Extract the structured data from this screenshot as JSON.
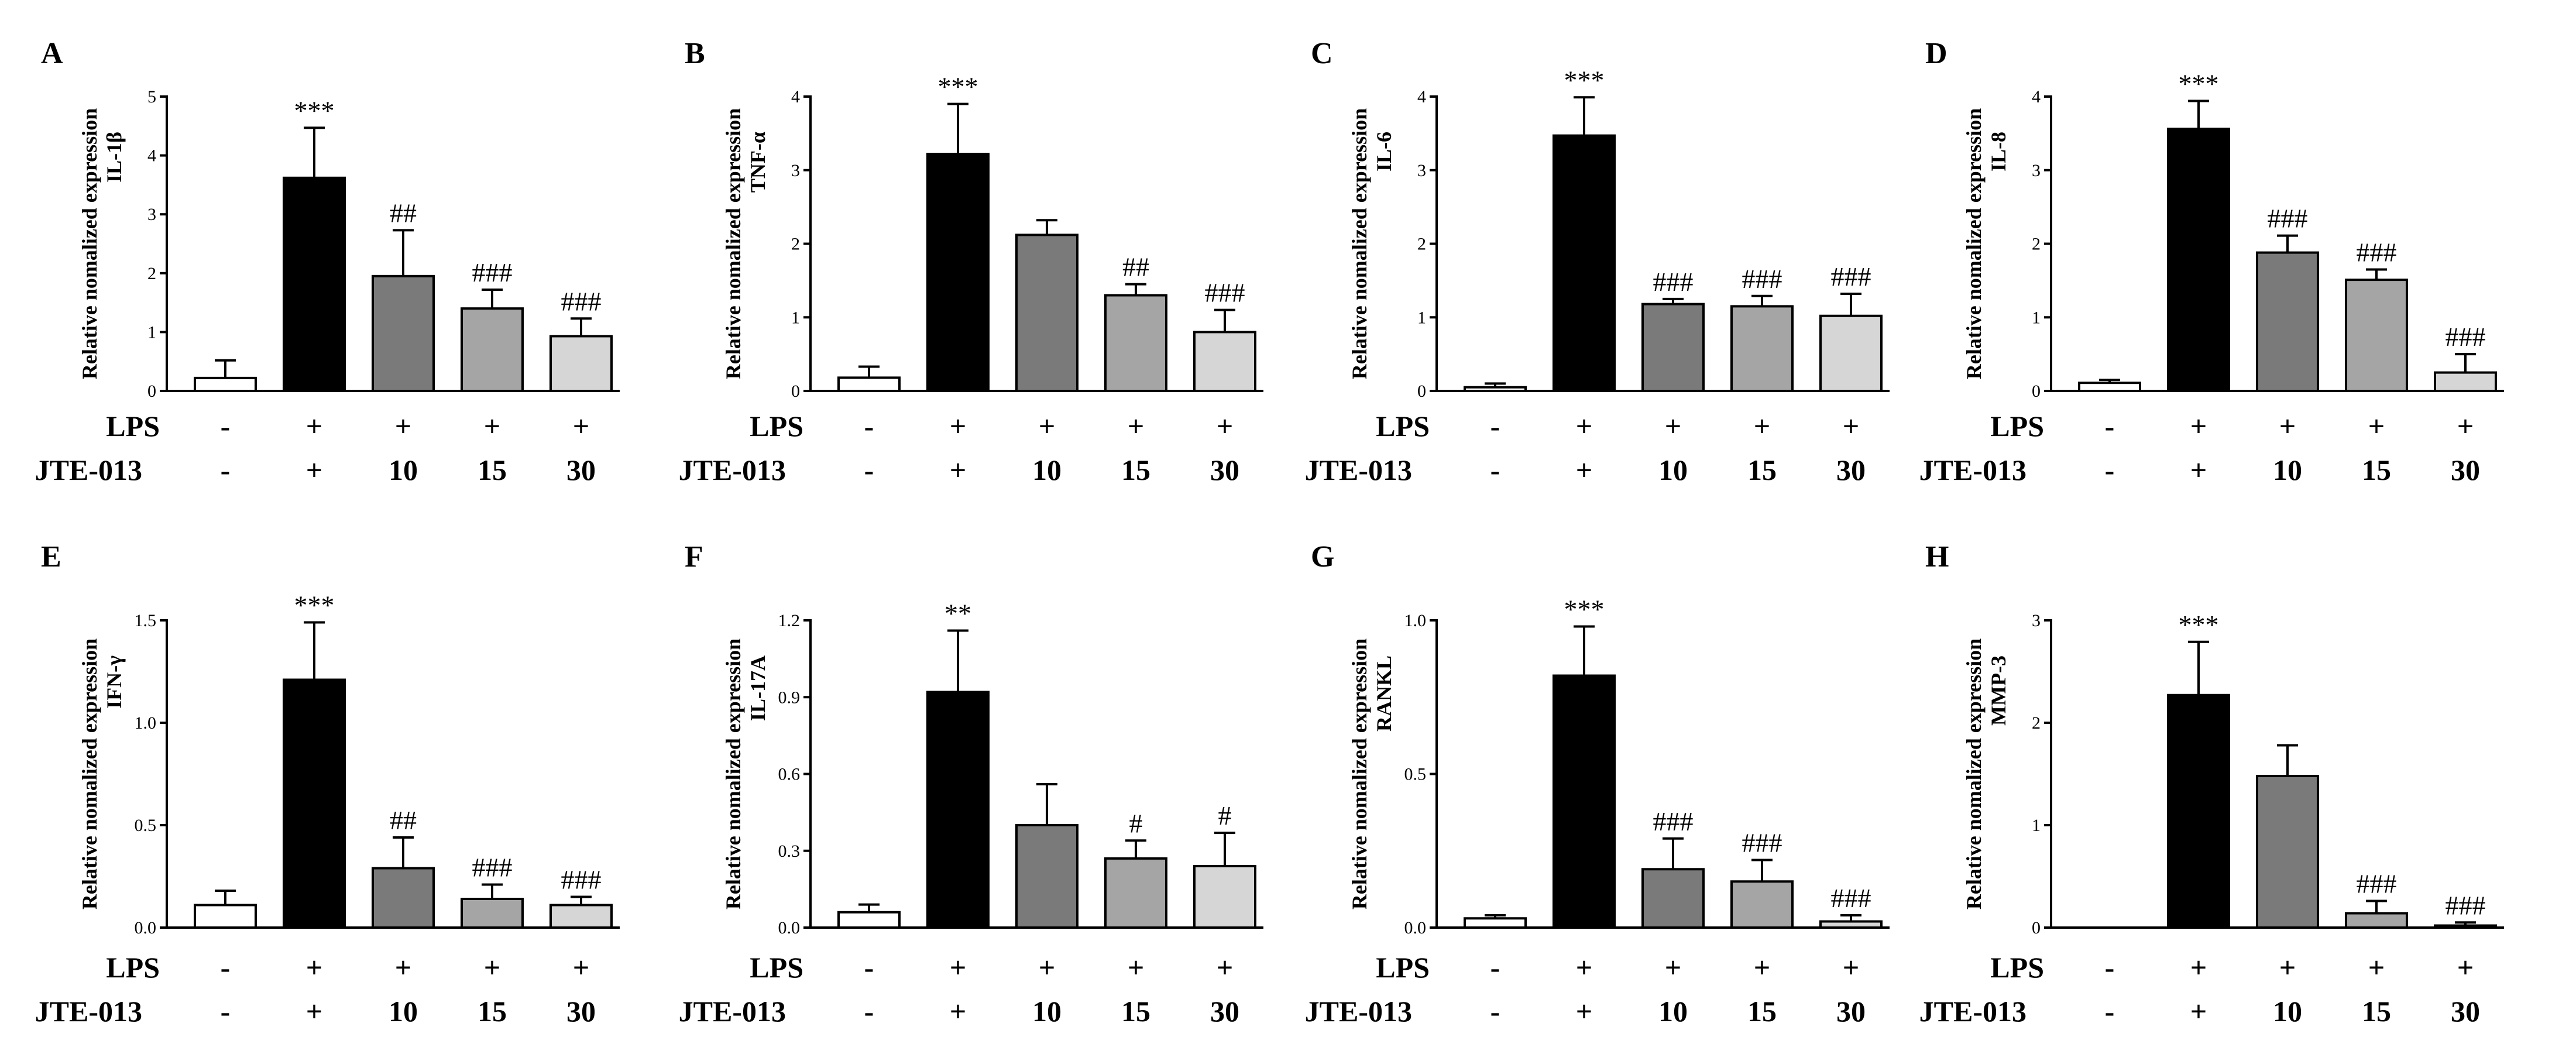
{
  "figure": {
    "row_labels": [
      "LPS",
      "JTE-013"
    ],
    "conditions": [
      {
        "lps": "-",
        "jte": "-"
      },
      {
        "lps": "+",
        "jte": "+"
      },
      {
        "lps": "+",
        "jte": "10"
      },
      {
        "lps": "+",
        "jte": "15"
      },
      {
        "lps": "+",
        "jte": "30"
      }
    ],
    "bar_colors": [
      "#ffffff",
      "#000000",
      "#7a7a7a",
      "#a5a5a5",
      "#d6d6d6"
    ]
  },
  "chart_data": [
    {
      "panel": "A",
      "type": "bar",
      "ylabel_line1": "Relative nomalized expression",
      "ylabel_line2": "IL-1β",
      "ylim": [
        0,
        5
      ],
      "yticks": [
        "0",
        "1",
        "2",
        "3",
        "4",
        "5"
      ],
      "ytick_values": [
        0,
        1,
        2,
        3,
        4,
        5
      ],
      "values": [
        0.22,
        3.62,
        1.95,
        1.4,
        0.93
      ],
      "errors": [
        0.3,
        0.85,
        0.78,
        0.32,
        0.3
      ],
      "annotations": [
        "",
        "***",
        "##",
        "###",
        "###"
      ]
    },
    {
      "panel": "B",
      "type": "bar",
      "ylabel_line1": "Relative nomalized expression",
      "ylabel_line2": "TNF-α",
      "ylim": [
        0,
        4
      ],
      "yticks": [
        "0",
        "1",
        "2",
        "3",
        "4"
      ],
      "ytick_values": [
        0,
        1,
        2,
        3,
        4
      ],
      "values": [
        0.18,
        3.22,
        2.12,
        1.3,
        0.8
      ],
      "errors": [
        0.15,
        0.68,
        0.2,
        0.15,
        0.3
      ],
      "annotations": [
        "",
        "***",
        "",
        "##",
        "###"
      ]
    },
    {
      "panel": "C",
      "type": "bar",
      "ylabel_line1": "Relative nomalized expression",
      "ylabel_line2": "IL-6",
      "ylim": [
        0,
        4
      ],
      "yticks": [
        "0",
        "1",
        "2",
        "3",
        "4"
      ],
      "ytick_values": [
        0,
        1,
        2,
        3,
        4
      ],
      "values": [
        0.05,
        3.47,
        1.18,
        1.15,
        1.02
      ],
      "errors": [
        0.05,
        0.52,
        0.07,
        0.14,
        0.3
      ],
      "annotations": [
        "",
        "***",
        "###",
        "###",
        "###"
      ]
    },
    {
      "panel": "D",
      "type": "bar",
      "ylabel_line1": "Relative nomalized expression",
      "ylabel_line2": "IL-8",
      "ylim": [
        0,
        4
      ],
      "yticks": [
        "0",
        "1",
        "2",
        "3",
        "4"
      ],
      "ytick_values": [
        0,
        1,
        2,
        3,
        4
      ],
      "values": [
        0.11,
        3.56,
        1.88,
        1.51,
        0.25
      ],
      "errors": [
        0.04,
        0.38,
        0.23,
        0.14,
        0.25
      ],
      "annotations": [
        "",
        "***",
        "###",
        "###",
        "###"
      ]
    },
    {
      "panel": "E",
      "type": "bar",
      "ylabel_line1": "Relative nomalized expression",
      "ylabel_line2": "IFN-γ",
      "ylim": [
        0,
        1.5
      ],
      "yticks": [
        "0.0",
        "0.5",
        "1.0",
        "1.5"
      ],
      "ytick_values": [
        0,
        0.5,
        1.0,
        1.5
      ],
      "values": [
        0.11,
        1.21,
        0.29,
        0.14,
        0.11
      ],
      "errors": [
        0.07,
        0.28,
        0.15,
        0.07,
        0.04
      ],
      "annotations": [
        "",
        "***",
        "##",
        "###",
        "###"
      ]
    },
    {
      "panel": "F",
      "type": "bar",
      "ylabel_line1": "Relative nomalized expression",
      "ylabel_line2": "IL-17A",
      "ylim": [
        0,
        1.2
      ],
      "yticks": [
        "0.0",
        "0.3",
        "0.6",
        "0.9",
        "1.2"
      ],
      "ytick_values": [
        0,
        0.3,
        0.6,
        0.9,
        1.2
      ],
      "values": [
        0.06,
        0.92,
        0.4,
        0.27,
        0.24
      ],
      "errors": [
        0.03,
        0.24,
        0.16,
        0.07,
        0.13
      ],
      "annotations": [
        "",
        "**",
        "",
        "#",
        "#"
      ]
    },
    {
      "panel": "G",
      "type": "bar",
      "ylabel_line1": "Relative nomalized expression",
      "ylabel_line2": "RANKL",
      "ylim": [
        0,
        1.0
      ],
      "yticks": [
        "0.0",
        "0.5",
        "1.0"
      ],
      "ytick_values": [
        0,
        0.5,
        1.0
      ],
      "values": [
        0.03,
        0.82,
        0.19,
        0.15,
        0.02
      ],
      "errors": [
        0.01,
        0.16,
        0.1,
        0.07,
        0.02
      ],
      "annotations": [
        "",
        "***",
        "###",
        "###",
        "###"
      ]
    },
    {
      "panel": "H",
      "type": "bar",
      "ylabel_line1": "Relative nomalized expression",
      "ylabel_line2": "MMP-3",
      "ylim": [
        0,
        3
      ],
      "yticks": [
        "0",
        "1",
        "2",
        "3"
      ],
      "ytick_values": [
        0,
        1,
        2,
        3
      ],
      "values": [
        0.0,
        2.27,
        1.48,
        0.14,
        0.02
      ],
      "errors": [
        0.0,
        0.52,
        0.3,
        0.12,
        0.03
      ],
      "annotations": [
        "",
        "***",
        "",
        "###",
        "###"
      ]
    }
  ]
}
